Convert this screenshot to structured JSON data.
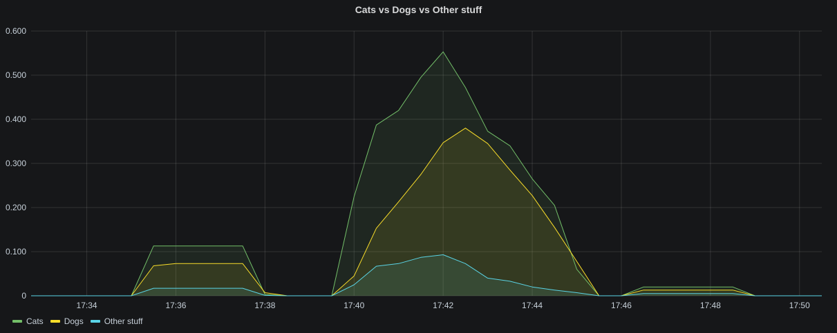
{
  "chart_data": {
    "type": "area",
    "title": "Cats vs Dogs vs Other stuff",
    "xlabel": "",
    "ylabel": "",
    "x_unit": "minutes (clock time hh:mm)",
    "xlim": [
      "17:32:45",
      "17:50:30"
    ],
    "ylim": [
      0,
      0.6
    ],
    "grid": true,
    "legend_position": "bottom-left",
    "x_ticks": [
      "17:34",
      "17:36",
      "17:38",
      "17:40",
      "17:42",
      "17:44",
      "17:46",
      "17:48",
      "17:50"
    ],
    "y_ticks": [
      "0",
      "0.100",
      "0.200",
      "0.300",
      "0.400",
      "0.500",
      "0.600"
    ],
    "y_tick_values": [
      0,
      0.1,
      0.2,
      0.3,
      0.4,
      0.5,
      0.6
    ],
    "x": [
      "17:32:45",
      "17:35:00",
      "17:35:30",
      "17:36:00",
      "17:36:30",
      "17:37:00",
      "17:37:30",
      "17:38:00",
      "17:38:30",
      "17:39:00",
      "17:39:30",
      "17:40:00",
      "17:40:30",
      "17:41:00",
      "17:41:30",
      "17:42:00",
      "17:42:30",
      "17:43:00",
      "17:43:30",
      "17:44:00",
      "17:44:30",
      "17:45:00",
      "17:45:30",
      "17:46:00",
      "17:46:30",
      "17:47:00",
      "17:47:30",
      "17:48:00",
      "17:48:30",
      "17:49:00",
      "17:49:30",
      "17:50:00",
      "17:50:30"
    ],
    "series": [
      {
        "name": "Cats",
        "color": "#73bf69",
        "values": [
          0,
          0,
          0.113,
          0.113,
          0.113,
          0.113,
          0.113,
          0.003,
          0,
          0,
          0,
          0.225,
          0.387,
          0.42,
          0.495,
          0.553,
          0.472,
          0.373,
          0.34,
          0.265,
          0.205,
          0.06,
          0,
          0,
          0.02,
          0.02,
          0.02,
          0.02,
          0.02,
          0,
          0,
          0,
          0
        ]
      },
      {
        "name": "Dogs",
        "color": "#fade2a",
        "values": [
          0,
          0,
          0.068,
          0.073,
          0.073,
          0.073,
          0.073,
          0.007,
          0,
          0,
          0,
          0.045,
          0.153,
          0.213,
          0.275,
          0.347,
          0.38,
          0.345,
          0.285,
          0.227,
          0.155,
          0.078,
          0,
          0,
          0.013,
          0.013,
          0.013,
          0.013,
          0.013,
          0,
          0,
          0,
          0
        ]
      },
      {
        "name": "Other stuff",
        "color": "#5ad4e6",
        "values": [
          0,
          0,
          0.017,
          0.017,
          0.017,
          0.017,
          0.017,
          0.001,
          0,
          0,
          0,
          0.025,
          0.067,
          0.073,
          0.087,
          0.093,
          0.073,
          0.04,
          0.033,
          0.02,
          0.013,
          0.007,
          0,
          0,
          0.005,
          0.005,
          0.005,
          0.005,
          0.005,
          0,
          0,
          0,
          0
        ]
      }
    ]
  }
}
